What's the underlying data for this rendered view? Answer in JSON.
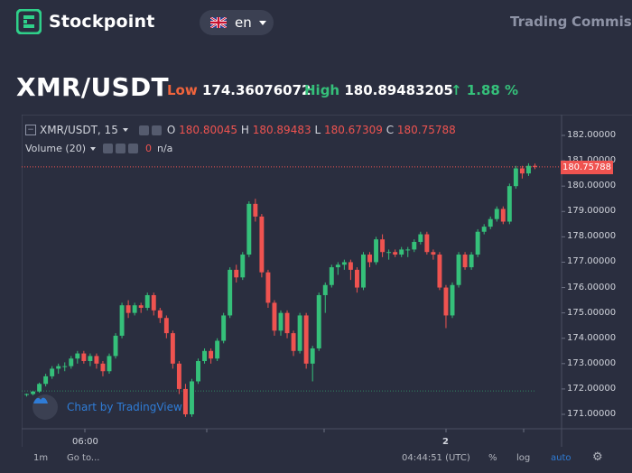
{
  "header": {
    "brand": "Stockpoint",
    "language": "en",
    "nav": [
      "Trading",
      "Commissi"
    ]
  },
  "ticker": {
    "pair": "XMR/USDT",
    "low_label": "Low",
    "low_value": "174.36076072",
    "high_label": "High",
    "high_value": "180.89483205",
    "change": "↑ 1.88 %"
  },
  "chart_legend": {
    "symbol": "XMR/USDT, 15",
    "o_label": "O",
    "o_value": "180.80045",
    "h_label": "H",
    "h_value": "180.89483",
    "l_label": "L",
    "l_value": "180.67309",
    "c_label": "C",
    "c_value": "180.75788",
    "volume_label": "Volume (20)",
    "volume_value": "0",
    "volume_na": "n/a"
  },
  "price_tag": "180.75788",
  "branding": "Chart by TradingView",
  "colors": {
    "up": "#35c07a",
    "down": "#ef5350",
    "accent": "#2f7cd6"
  },
  "chart_data": {
    "type": "candlestick",
    "y_ticks": [
      "182.00000",
      "181.00000",
      "180.00000",
      "179.00000",
      "178.00000",
      "177.00000",
      "176.00000",
      "175.00000",
      "174.00000",
      "173.00000",
      "172.00000",
      "171.00000"
    ],
    "ylim": [
      170.5,
      182.5
    ],
    "x_ticks": [
      "06:00",
      "2"
    ],
    "current_price": 180.75788,
    "candles": [
      [
        171.78,
        171.8,
        171.7,
        171.82
      ],
      [
        171.8,
        171.9,
        171.75,
        171.92
      ],
      [
        171.9,
        172.2,
        171.85,
        172.25
      ],
      [
        172.2,
        172.5,
        172.1,
        172.6
      ],
      [
        172.5,
        172.8,
        172.4,
        172.9
      ],
      [
        172.8,
        172.9,
        172.6,
        173.0
      ],
      [
        172.9,
        172.9,
        172.7,
        173.05
      ],
      [
        172.9,
        173.2,
        172.8,
        173.3
      ],
      [
        173.2,
        173.4,
        173.0,
        173.5
      ],
      [
        173.4,
        173.1,
        173.0,
        173.5
      ],
      [
        173.1,
        173.3,
        172.9,
        173.4
      ],
      [
        173.3,
        173.0,
        172.8,
        173.4
      ],
      [
        173.0,
        172.7,
        172.5,
        173.1
      ],
      [
        172.7,
        173.3,
        172.6,
        173.4
      ],
      [
        173.3,
        174.1,
        173.2,
        174.2
      ],
      [
        174.1,
        175.3,
        174.0,
        175.4
      ],
      [
        175.3,
        175.0,
        174.8,
        175.5
      ],
      [
        175.0,
        175.3,
        174.9,
        175.4
      ],
      [
        175.3,
        175.2,
        175.0,
        175.4
      ],
      [
        175.2,
        175.7,
        175.1,
        175.8
      ],
      [
        175.7,
        175.1,
        174.9,
        175.8
      ],
      [
        175.1,
        174.8,
        174.6,
        175.2
      ],
      [
        174.8,
        174.2,
        174.0,
        174.9
      ],
      [
        174.2,
        173.0,
        172.8,
        174.3
      ],
      [
        173.0,
        172.0,
        171.8,
        173.1
      ],
      [
        172.0,
        171.0,
        170.9,
        172.2
      ],
      [
        171.0,
        172.3,
        170.9,
        172.4
      ],
      [
        172.3,
        173.1,
        172.2,
        173.2
      ],
      [
        173.1,
        173.5,
        173.0,
        173.6
      ],
      [
        173.5,
        173.2,
        173.0,
        173.6
      ],
      [
        173.2,
        173.9,
        173.1,
        174.0
      ],
      [
        173.9,
        174.9,
        173.8,
        175.0
      ],
      [
        174.9,
        176.7,
        174.8,
        176.8
      ],
      [
        176.7,
        176.4,
        176.2,
        176.9
      ],
      [
        176.4,
        177.3,
        176.3,
        177.4
      ],
      [
        177.3,
        179.3,
        177.2,
        179.4
      ],
      [
        179.3,
        178.8,
        178.6,
        179.5
      ],
      [
        178.8,
        176.6,
        176.4,
        178.9
      ],
      [
        176.6,
        175.4,
        175.2,
        176.7
      ],
      [
        175.4,
        174.3,
        174.1,
        175.5
      ],
      [
        174.3,
        175.0,
        174.1,
        175.1
      ],
      [
        175.0,
        174.2,
        174.0,
        175.1
      ],
      [
        174.2,
        173.5,
        173.3,
        174.3
      ],
      [
        173.5,
        174.9,
        173.4,
        175.0
      ],
      [
        174.9,
        173.0,
        172.8,
        175.0
      ],
      [
        173.0,
        173.6,
        172.3,
        173.7
      ],
      [
        173.6,
        175.7,
        173.5,
        175.8
      ],
      [
        175.7,
        176.1,
        175.0,
        176.2
      ],
      [
        176.1,
        176.8,
        176.0,
        176.9
      ],
      [
        176.8,
        176.9,
        176.5,
        177.0
      ],
      [
        176.9,
        177.0,
        176.7,
        177.1
      ],
      [
        177.0,
        176.7,
        176.3,
        177.1
      ],
      [
        176.7,
        176.0,
        175.8,
        176.8
      ],
      [
        176.0,
        177.3,
        175.9,
        177.4
      ],
      [
        177.3,
        177.0,
        176.8,
        177.4
      ],
      [
        177.0,
        177.9,
        176.9,
        178.0
      ],
      [
        177.9,
        177.4,
        177.2,
        178.1
      ],
      [
        177.4,
        177.4,
        177.1,
        177.5
      ],
      [
        177.4,
        177.3,
        177.2,
        177.5
      ],
      [
        177.3,
        177.5,
        177.2,
        177.6
      ],
      [
        177.5,
        177.5,
        177.2,
        177.6
      ],
      [
        177.5,
        177.8,
        177.4,
        177.9
      ],
      [
        177.8,
        178.1,
        177.7,
        178.2
      ],
      [
        178.1,
        177.4,
        177.3,
        178.2
      ],
      [
        177.4,
        177.3,
        177.1,
        177.5
      ],
      [
        177.3,
        176.0,
        175.9,
        177.4
      ],
      [
        176.0,
        174.9,
        174.4,
        176.1
      ],
      [
        174.9,
        176.1,
        174.8,
        176.2
      ],
      [
        176.1,
        177.3,
        176.0,
        177.4
      ],
      [
        177.3,
        176.8,
        176.7,
        177.4
      ],
      [
        176.8,
        177.3,
        176.7,
        177.4
      ],
      [
        177.3,
        178.2,
        177.2,
        178.3
      ],
      [
        178.2,
        178.4,
        178.1,
        178.5
      ],
      [
        178.4,
        178.7,
        178.3,
        178.8
      ],
      [
        178.7,
        179.1,
        178.6,
        179.2
      ],
      [
        179.1,
        178.6,
        178.5,
        179.2
      ],
      [
        178.6,
        180.0,
        178.5,
        180.1
      ],
      [
        180.0,
        180.7,
        179.9,
        180.8
      ],
      [
        180.7,
        180.5,
        180.3,
        180.8
      ],
      [
        180.5,
        180.8,
        180.4,
        180.9
      ],
      [
        180.8,
        180.76,
        180.67,
        180.89
      ]
    ]
  },
  "bottom": {
    "interval": "1m",
    "goto": "Go to...",
    "time": "04:44:51 (UTC)",
    "percent": "%",
    "log": "log",
    "auto": "auto"
  }
}
